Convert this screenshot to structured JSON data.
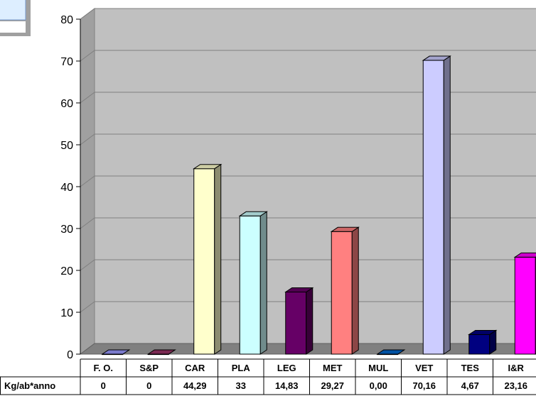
{
  "chart_data": {
    "type": "bar",
    "categories": [
      "F. O.",
      "S&P",
      "CAR",
      "PLA",
      "LEG",
      "MET",
      "MUL",
      "VET",
      "TES",
      "I&R"
    ],
    "series": [
      {
        "name": "Kg/ab*anno",
        "values": [
          0,
          0,
          44.29,
          33,
          14.83,
          29.27,
          0.0,
          70.16,
          4.67,
          23.16
        ],
        "labels": [
          "0",
          "0",
          "44,29",
          "33",
          "14,83",
          "29,27",
          "0,00",
          "70,16",
          "4,67",
          "23,16"
        ],
        "colors": [
          "#9999ff",
          "#993366",
          "#ffffcc",
          "#ccffff",
          "#660066",
          "#ff8080",
          "#0066cc",
          "#ccccff",
          "#000080",
          "#ff00ff"
        ]
      }
    ],
    "ylim": [
      0,
      80
    ],
    "yticks": [
      "0",
      "10",
      "20",
      "30",
      "40",
      "50",
      "60",
      "70",
      "80"
    ],
    "grid": true,
    "background": "#c0c0c0"
  }
}
